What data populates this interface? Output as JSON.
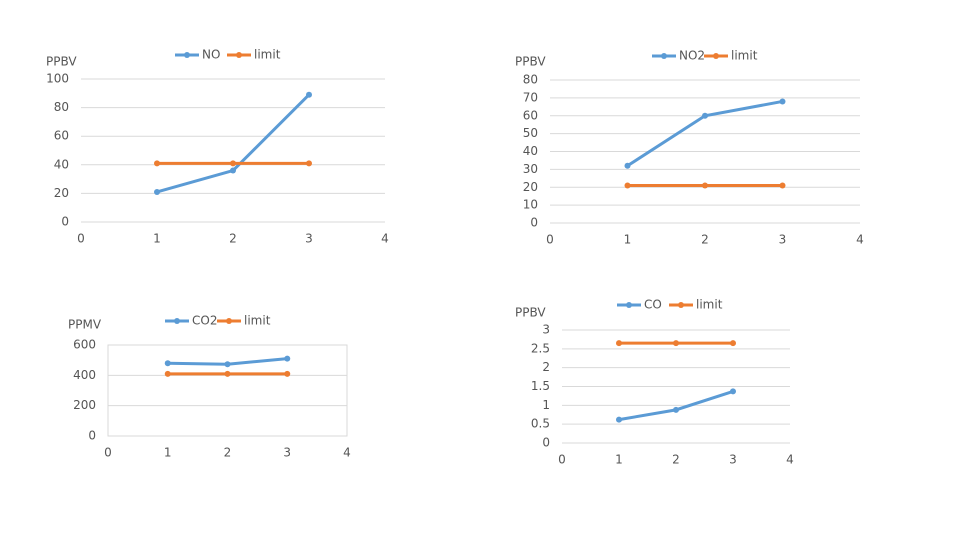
{
  "chart_data": [
    {
      "type": "line",
      "ylabel": "PPBV",
      "x": [
        1,
        2,
        3
      ],
      "xlim": [
        0,
        4
      ],
      "xticks": [
        0,
        1,
        2,
        3,
        4
      ],
      "ylim": [
        0,
        100
      ],
      "yticks": [
        0,
        20,
        40,
        60,
        80,
        100
      ],
      "grid": true,
      "legend": "top",
      "border": false,
      "series": [
        {
          "name": "NO",
          "color": "#5b9bd5",
          "values": [
            21,
            36,
            89
          ]
        },
        {
          "name": "limit",
          "color": "#ed7d31",
          "values": [
            41,
            41,
            41
          ]
        }
      ]
    },
    {
      "type": "line",
      "ylabel": "PPBV",
      "x": [
        1,
        2,
        3
      ],
      "xlim": [
        0,
        4
      ],
      "xticks": [
        0,
        1,
        2,
        3,
        4
      ],
      "ylim": [
        0,
        80
      ],
      "yticks": [
        0,
        10,
        20,
        30,
        40,
        50,
        60,
        70,
        80
      ],
      "grid": true,
      "legend": "top",
      "border": false,
      "series": [
        {
          "name": "NO2",
          "color": "#5b9bd5",
          "values": [
            32,
            60,
            68
          ]
        },
        {
          "name": "limit",
          "color": "#ed7d31",
          "values": [
            21,
            21,
            21
          ]
        }
      ]
    },
    {
      "type": "line",
      "ylabel": "PPMV",
      "x": [
        1,
        2,
        3
      ],
      "xlim": [
        0,
        4
      ],
      "xticks": [
        0,
        1,
        2,
        3,
        4
      ],
      "ylim": [
        0,
        600
      ],
      "yticks": [
        0,
        200,
        400,
        600
      ],
      "grid": true,
      "legend": "top",
      "border": true,
      "series": [
        {
          "name": "CO2",
          "color": "#5b9bd5",
          "values": [
            480,
            473,
            510
          ]
        },
        {
          "name": "limit",
          "color": "#ed7d31",
          "values": [
            410,
            410,
            410
          ]
        }
      ]
    },
    {
      "type": "line",
      "ylabel": "PPBV",
      "x": [
        1,
        2,
        3
      ],
      "xlim": [
        0,
        4
      ],
      "xticks": [
        0,
        1,
        2,
        3,
        4
      ],
      "ylim": [
        0,
        3
      ],
      "yticks": [
        0,
        0.5,
        1,
        1.5,
        2,
        2.5,
        3
      ],
      "grid": true,
      "legend": "top",
      "border": false,
      "series": [
        {
          "name": "CO",
          "color": "#5b9bd5",
          "values": [
            0.62,
            0.88,
            1.37
          ]
        },
        {
          "name": "limit",
          "color": "#ed7d31",
          "values": [
            2.65,
            2.65,
            2.65
          ]
        }
      ]
    }
  ]
}
